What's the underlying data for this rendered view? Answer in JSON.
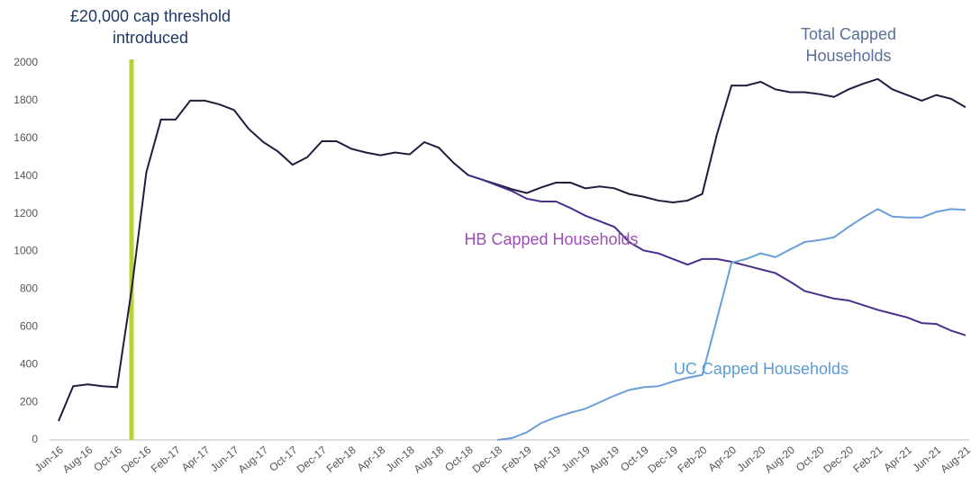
{
  "chart_data": {
    "type": "line",
    "annotation": [
      "£20,000 cap threshold",
      "introduced"
    ],
    "categories": [
      "Jun-16",
      null,
      "Aug-16",
      null,
      "Oct-16",
      null,
      "Dec-16",
      null,
      "Feb-17",
      null,
      "Apr-17",
      null,
      "Jun-17",
      null,
      "Aug-17",
      null,
      "Oct-17",
      null,
      "Dec-17",
      null,
      "Feb-18",
      null,
      "Apr-18",
      null,
      "Jun-18",
      null,
      "Aug-18",
      null,
      "Oct-18",
      null,
      "Dec-18",
      null,
      "Feb-19",
      null,
      "Apr-19",
      null,
      "Jun-19",
      null,
      "Aug-19",
      null,
      "Oct-19",
      null,
      "Dec-19",
      null,
      "Feb-20",
      null,
      "Apr-20",
      null,
      "Jun-20",
      null,
      "Aug-20",
      null,
      "Oct-20",
      null,
      "Dec-20",
      null,
      "Feb-21",
      null,
      "Apr-21",
      null,
      "Jun-21",
      null,
      "Aug-21"
    ],
    "series": [
      {
        "name": "Total Capped Households",
        "color": "#1f1d3d",
        "label_color": "#5b6f9a",
        "values": [
          100,
          285,
          295,
          285,
          280,
          800,
          1420,
          1700,
          1700,
          1800,
          1800,
          1780,
          1750,
          1650,
          1580,
          1530,
          1460,
          1500,
          1585,
          1585,
          1545,
          1525,
          1510,
          1525,
          1515,
          1580,
          1550,
          1470,
          1405,
          1380,
          1355,
          1330,
          1310,
          1340,
          1365,
          1365,
          1335,
          1345,
          1335,
          1305,
          1290,
          1270,
          1260,
          1270,
          1305,
          1620,
          1880,
          1880,
          1900,
          1860,
          1845,
          1845,
          1835,
          1820,
          1860,
          1890,
          1915,
          1860,
          1830,
          1800,
          1830,
          1810,
          1765
        ]
      },
      {
        "name": "HB Capped Households",
        "color": "#4a2f8c",
        "label_color": "#9b4fb5",
        "values": [
          null,
          null,
          null,
          null,
          null,
          null,
          null,
          null,
          null,
          null,
          null,
          null,
          null,
          null,
          null,
          null,
          null,
          null,
          null,
          null,
          null,
          null,
          null,
          null,
          null,
          null,
          null,
          null,
          1405,
          1380,
          1350,
          1320,
          1280,
          1265,
          1265,
          1230,
          1190,
          1160,
          1130,
          1050,
          1005,
          990,
          960,
          930,
          960,
          960,
          945,
          925,
          905,
          885,
          840,
          790,
          770,
          750,
          740,
          715,
          690,
          670,
          650,
          620,
          615,
          580,
          555
        ]
      },
      {
        "name": "UC Capped Households",
        "color": "#6a9fd8",
        "label_color": "#5b9bd5",
        "values": [
          null,
          null,
          null,
          null,
          null,
          null,
          null,
          null,
          null,
          null,
          null,
          null,
          null,
          null,
          null,
          null,
          null,
          null,
          null,
          null,
          null,
          null,
          null,
          null,
          null,
          null,
          null,
          null,
          null,
          null,
          0,
          10,
          40,
          90,
          120,
          145,
          165,
          200,
          235,
          265,
          280,
          285,
          310,
          330,
          345,
          640,
          940,
          960,
          990,
          970,
          1010,
          1050,
          1060,
          1075,
          1130,
          1180,
          1225,
          1185,
          1180,
          1180,
          1210,
          1225,
          1220
        ]
      }
    ],
    "ylim": [
      0,
      2000
    ],
    "yticks": [
      0,
      200,
      400,
      600,
      800,
      1000,
      1200,
      1400,
      1600,
      1800,
      2000
    ],
    "grid": false
  }
}
